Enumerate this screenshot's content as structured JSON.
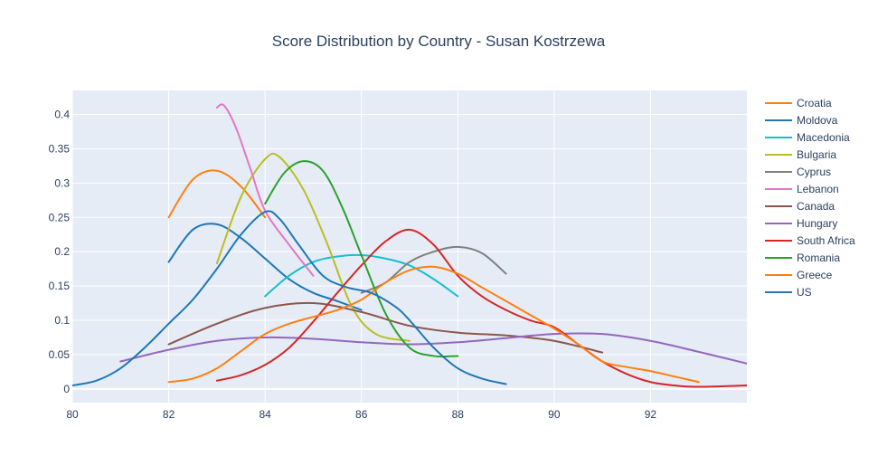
{
  "chart_data": {
    "type": "line",
    "title": "Score Distribution by Country - Susan Kostrzewa",
    "xlabel": "",
    "ylabel": "",
    "xlim": [
      80,
      94
    ],
    "ylim": [
      -0.02,
      0.435
    ],
    "x_ticks": [
      80,
      82,
      84,
      86,
      88,
      90,
      92
    ],
    "y_ticks": [
      0,
      0.05,
      0.1,
      0.15,
      0.2,
      0.25,
      0.3,
      0.35,
      0.4
    ],
    "y_tick_labels": [
      "0",
      "0.05",
      "0.1",
      "0.15",
      "0.2",
      "0.25",
      "0.3",
      "0.35",
      "0.4"
    ],
    "legend_position": "right",
    "grid": true,
    "series": [
      {
        "name": "Croatia",
        "color": "#ff7f0e",
        "x": [
          82,
          82.5,
          83,
          83.5,
          84
        ],
        "y": [
          0.25,
          0.305,
          0.318,
          0.295,
          0.25
        ]
      },
      {
        "name": "Moldova",
        "color": "#1f77b4",
        "x": [
          82,
          82.5,
          83,
          83.5,
          84,
          84.5,
          85,
          85.5,
          86
        ],
        "y": [
          0.185,
          0.232,
          0.24,
          0.22,
          0.19,
          0.16,
          0.14,
          0.128,
          0.115
        ]
      },
      {
        "name": "Macedonia",
        "color": "#17becf",
        "x": [
          84,
          84.5,
          85,
          85.5,
          86,
          86.5,
          87,
          87.5,
          88
        ],
        "y": [
          0.135,
          0.165,
          0.185,
          0.193,
          0.195,
          0.19,
          0.18,
          0.16,
          0.135
        ]
      },
      {
        "name": "Bulgaria",
        "color": "#bcbd22",
        "x": [
          83,
          83.5,
          84,
          84.3,
          84.8,
          85.3,
          85.8,
          86.3,
          87
        ],
        "y": [
          0.183,
          0.28,
          0.335,
          0.338,
          0.29,
          0.21,
          0.12,
          0.08,
          0.07
        ]
      },
      {
        "name": "Cyprus",
        "color": "#7f7f7f",
        "x": [
          86,
          86.5,
          87,
          87.5,
          88,
          88.5,
          89
        ],
        "y": [
          0.14,
          0.155,
          0.185,
          0.2,
          0.207,
          0.198,
          0.168
        ]
      },
      {
        "name": "Lebanon",
        "color": "#e377c2",
        "x": [
          83,
          83.15,
          83.4,
          83.7,
          84,
          84.5,
          85
        ],
        "y": [
          0.41,
          0.413,
          0.38,
          0.32,
          0.26,
          0.21,
          0.165
        ]
      },
      {
        "name": "Canada",
        "color": "#8c564b",
        "x": [
          82,
          83,
          84,
          85,
          86,
          87,
          88,
          89,
          90,
          91
        ],
        "y": [
          0.065,
          0.095,
          0.118,
          0.125,
          0.112,
          0.092,
          0.082,
          0.078,
          0.07,
          0.053
        ]
      },
      {
        "name": "Hungary",
        "color": "#9467bd",
        "x": [
          81,
          82,
          83,
          84,
          85,
          86,
          87,
          88,
          89,
          90,
          91,
          92,
          93,
          94
        ],
        "y": [
          0.04,
          0.057,
          0.07,
          0.075,
          0.073,
          0.068,
          0.065,
          0.068,
          0.074,
          0.08,
          0.08,
          0.07,
          0.054,
          0.037
        ]
      },
      {
        "name": "South Africa",
        "color": "#d62728",
        "x": [
          83,
          83.5,
          84,
          84.5,
          85,
          85.5,
          86,
          86.5,
          87,
          87.5,
          88,
          88.5,
          89,
          89.5,
          90,
          90.5,
          91,
          91.5,
          92,
          92.5,
          93,
          94
        ],
        "y": [
          0.012,
          0.02,
          0.035,
          0.06,
          0.098,
          0.14,
          0.18,
          0.215,
          0.232,
          0.21,
          0.165,
          0.135,
          0.115,
          0.1,
          0.09,
          0.065,
          0.04,
          0.022,
          0.01,
          0.005,
          0.003,
          0.005
        ]
      },
      {
        "name": "Romania",
        "color": "#2ca02c",
        "x": [
          84,
          84.4,
          84.8,
          85.2,
          85.6,
          86,
          86.5,
          87,
          87.5,
          88
        ],
        "y": [
          0.27,
          0.315,
          0.332,
          0.318,
          0.265,
          0.195,
          0.11,
          0.06,
          0.048,
          0.048
        ]
      },
      {
        "name": "Greece",
        "color": "#ff7f0e",
        "x": [
          82,
          82.5,
          83,
          83.5,
          84,
          84.5,
          85,
          85.5,
          86,
          86.5,
          87,
          87.5,
          88,
          88.5,
          89,
          89.5,
          90,
          90.5,
          91,
          91.5,
          92,
          92.5,
          93
        ],
        "y": [
          0.01,
          0.015,
          0.03,
          0.055,
          0.08,
          0.095,
          0.105,
          0.115,
          0.13,
          0.155,
          0.173,
          0.178,
          0.168,
          0.148,
          0.128,
          0.108,
          0.088,
          0.065,
          0.04,
          0.032,
          0.026,
          0.018,
          0.01
        ]
      },
      {
        "name": "US",
        "color": "#1f77b4",
        "x": [
          80,
          80.5,
          81,
          81.5,
          82,
          82.5,
          83,
          83.5,
          84,
          84.3,
          84.7,
          85.2,
          85.7,
          86.2,
          86.7,
          87,
          87.5,
          88,
          88.5,
          89
        ],
        "y": [
          0.005,
          0.012,
          0.03,
          0.06,
          0.095,
          0.13,
          0.175,
          0.225,
          0.258,
          0.248,
          0.21,
          0.165,
          0.148,
          0.14,
          0.12,
          0.1,
          0.06,
          0.03,
          0.015,
          0.007
        ]
      }
    ]
  }
}
